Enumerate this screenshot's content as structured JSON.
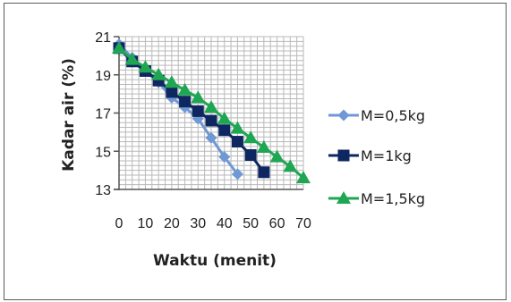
{
  "chart_data": {
    "type": "line",
    "title": "",
    "xlabel": "Waktu (menit)",
    "ylabel": "Kadar air (%)",
    "xlim": [
      0,
      70
    ],
    "ylim": [
      13,
      21
    ],
    "x_ticks": [
      0,
      10,
      20,
      30,
      40,
      50,
      60,
      70
    ],
    "x_tick_labels": [
      "0",
      "10",
      "20",
      "30",
      "40",
      "50",
      "60",
      "70"
    ],
    "y_ticks": [
      13,
      15,
      17,
      19,
      21
    ],
    "y_tick_labels": [
      "13",
      "15",
      "17",
      "19",
      "21"
    ],
    "grid": true,
    "legend_position": "right",
    "series": [
      {
        "name": "M=0,5kg",
        "color": "#6f98d4",
        "marker": "diamond",
        "x": [
          0,
          5,
          10,
          15,
          20,
          25,
          30,
          35,
          40,
          45
        ],
        "y": [
          20.6,
          19.9,
          19.2,
          18.6,
          17.8,
          17.3,
          16.7,
          15.7,
          14.7,
          13.8
        ]
      },
      {
        "name": "M=1kg",
        "color": "#0e2761",
        "marker": "square",
        "x": [
          0,
          5,
          10,
          15,
          20,
          25,
          30,
          35,
          40,
          45,
          50,
          55
        ],
        "y": [
          20.4,
          19.7,
          19.2,
          18.7,
          18.1,
          17.6,
          17.1,
          16.6,
          16.1,
          15.5,
          14.8,
          13.9
        ]
      },
      {
        "name": "M=1,5kg",
        "color": "#1fa653",
        "marker": "triangle",
        "x": [
          0,
          5,
          10,
          15,
          20,
          25,
          30,
          35,
          40,
          45,
          50,
          55,
          60,
          65,
          70
        ],
        "y": [
          20.4,
          19.8,
          19.4,
          19.0,
          18.6,
          18.2,
          17.8,
          17.3,
          16.7,
          16.2,
          15.7,
          15.2,
          14.7,
          14.2,
          13.6
        ]
      }
    ]
  }
}
